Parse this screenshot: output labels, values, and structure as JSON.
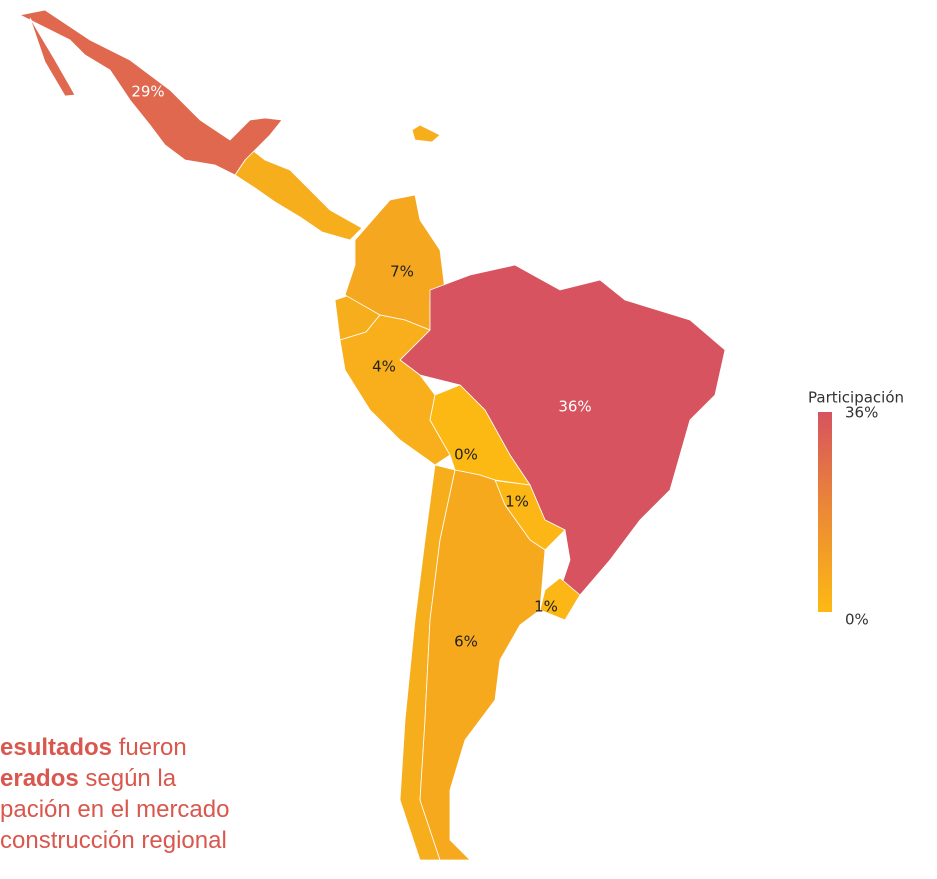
{
  "map": {
    "legend": {
      "title": "Participación",
      "max": {
        "value": 36,
        "label": "36%"
      },
      "min": {
        "value": 0,
        "label": "0%"
      },
      "colors": [
        "#fdb913",
        "#ec8a35",
        "#d6535f"
      ]
    },
    "regions": [
      {
        "value": 29,
        "label": "29%"
      },
      {
        "value": 7,
        "label": "7%"
      },
      {
        "value": 36,
        "label": "36%"
      },
      {
        "value": 4,
        "label": "4%"
      },
      {
        "value": 0,
        "label": "0%"
      },
      {
        "value": 1,
        "label": "1%"
      },
      {
        "value": 1,
        "label": "1%"
      },
      {
        "value": 6,
        "label": "6%"
      }
    ],
    "note": [
      [
        {
          "text": "esultados",
          "bold": true
        },
        {
          "text": " fueron",
          "bold": false
        }
      ],
      [
        {
          "text": "erados",
          "bold": true
        },
        {
          "text": " según la",
          "bold": false
        }
      ],
      [
        {
          "text": "pación en el mercado",
          "bold": false
        }
      ],
      [
        {
          "text": "construcción regional",
          "bold": false
        }
      ]
    ]
  }
}
